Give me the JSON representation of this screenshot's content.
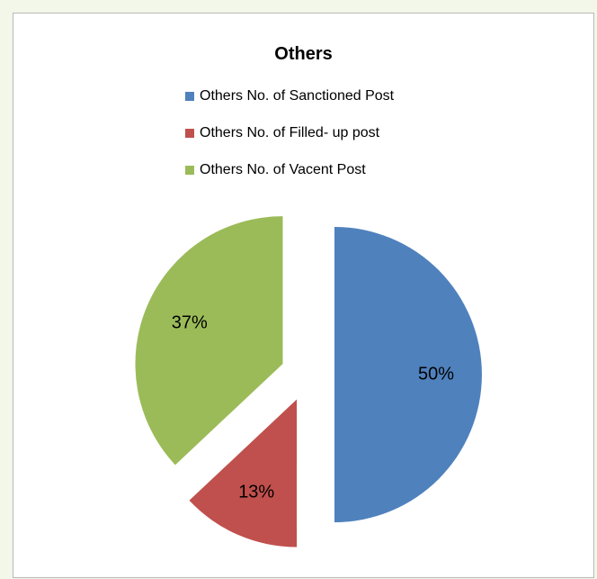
{
  "chart_data": {
    "type": "pie",
    "title": "Others",
    "legend_placement": "top",
    "exploded": true,
    "slices": [
      {
        "label": "Others No. of Sanctioned Post",
        "value": 50,
        "display": "50%",
        "color": "#4f81bd"
      },
      {
        "label": "Others No. of Filled- up post",
        "value": 13,
        "display": "13%",
        "color": "#c0504d"
      },
      {
        "label": "Others No. of Vacent Post",
        "value": 37,
        "display": "37%",
        "color": "#9bbb59"
      }
    ]
  }
}
